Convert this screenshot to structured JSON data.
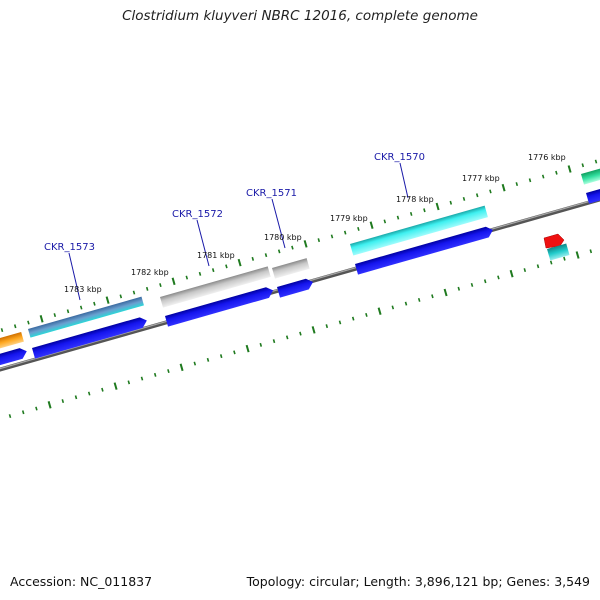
{
  "title": "Clostridium kluyveri NBRC 12016, complete genome",
  "footer": {
    "accession": "Accession: NC_011837",
    "summary": "Topology: circular; Length: 3,896,121 bp; Genes: 3,549"
  },
  "kbp_labels": [
    "1776 kbp",
    "1777 kbp",
    "1778 kbp",
    "1779 kbp",
    "1780 kbp",
    "1781 kbp",
    "1782 kbp",
    "1783 kbp"
  ],
  "locus_labels": [
    "CKR_1570",
    "CKR_1571",
    "CKR_1572",
    "CKR_1573"
  ],
  "colors": {
    "backbone": "#777777",
    "tick": "#1f7a1f",
    "blue_cds": "#1010e0",
    "cyan": "#22dddd",
    "gray": "#b8b8b8",
    "steelblue": "#4a7ab0",
    "orange": "#ff9900",
    "red": "#ee1111",
    "teal": "#1fb8b8",
    "green": "#22cc88",
    "locus_text": "#1a1aa8"
  }
}
